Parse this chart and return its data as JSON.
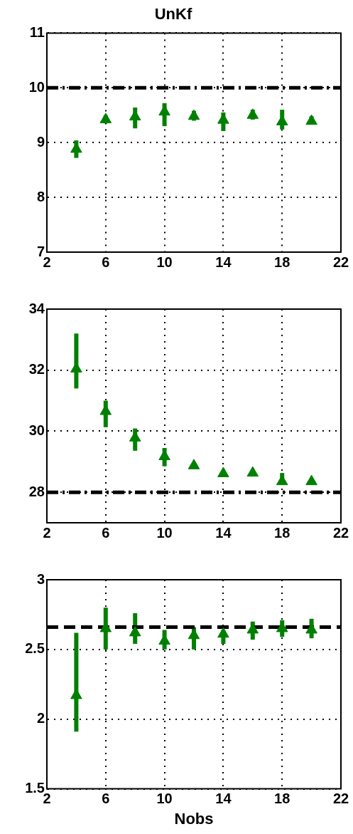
{
  "chart_data": [
    {
      "type": "scatter",
      "title": "UnKf",
      "x": [
        4,
        6,
        8,
        10,
        12,
        14,
        16,
        18,
        20
      ],
      "color": "#008000",
      "marker": "triangle",
      "values": [
        8.88,
        9.42,
        9.47,
        9.56,
        9.48,
        9.41,
        9.5,
        9.38,
        9.39
      ],
      "errors": [
        [
          8.72,
          9.04
        ],
        [
          9.35,
          9.5
        ],
        [
          9.26,
          9.64
        ],
        [
          9.3,
          9.72
        ],
        [
          9.4,
          9.58
        ],
        [
          9.21,
          9.55
        ],
        [
          9.42,
          9.6
        ],
        [
          9.24,
          9.6
        ],
        [
          9.34,
          9.48
        ]
      ],
      "xlim": [
        2,
        22
      ],
      "xticks": [
        2,
        6,
        10,
        14,
        18,
        22
      ],
      "ylim": [
        7,
        11
      ],
      "yticks": [
        7,
        8,
        9,
        10,
        11
      ],
      "grid": true,
      "ref_lines": [
        {
          "axis": "y",
          "value": 10,
          "color": "#000000",
          "line_style": "dashdot"
        }
      ]
    },
    {
      "type": "scatter",
      "x": [
        4,
        6,
        8,
        10,
        12,
        14,
        16,
        18,
        20
      ],
      "color": "#008000",
      "marker": "triangle",
      "values": [
        32.04,
        30.65,
        29.78,
        29.17,
        28.87,
        28.61,
        28.63,
        28.35,
        28.35
      ],
      "errors": [
        [
          31.4,
          33.2
        ],
        [
          30.13,
          31.0
        ],
        [
          29.36,
          30.09
        ],
        [
          28.85,
          29.45
        ],
        [
          28.8,
          28.95
        ],
        [
          28.55,
          28.7
        ],
        [
          28.55,
          28.7
        ],
        [
          28.25,
          28.63
        ],
        [
          28.28,
          28.42
        ]
      ],
      "xlim": [
        2,
        22
      ],
      "xticks": [
        2,
        6,
        10,
        14,
        18,
        22
      ],
      "ylim": [
        27,
        34
      ],
      "yticks": [
        28,
        30,
        32,
        34
      ],
      "grid": true,
      "ref_lines": [
        {
          "axis": "y",
          "value": 28,
          "color": "#000000",
          "line_style": "dashdot"
        }
      ]
    },
    {
      "type": "scatter",
      "xlabel": "Nobs",
      "x": [
        4,
        6,
        8,
        10,
        12,
        14,
        16,
        18,
        20
      ],
      "color": "#008000",
      "marker": "triangle",
      "values": [
        2.17,
        2.65,
        2.62,
        2.56,
        2.6,
        2.61,
        2.64,
        2.65,
        2.64
      ],
      "errors": [
        [
          1.91,
          2.62
        ],
        [
          2.5,
          2.8
        ],
        [
          2.54,
          2.76
        ],
        [
          2.5,
          2.64
        ],
        [
          2.5,
          2.66
        ],
        [
          2.54,
          2.64
        ],
        [
          2.57,
          2.7
        ],
        [
          2.59,
          2.71
        ],
        [
          2.58,
          2.72
        ]
      ],
      "xlim": [
        2,
        22
      ],
      "xticks": [
        2,
        6,
        10,
        14,
        18,
        22
      ],
      "ylim": [
        1.5,
        3
      ],
      "yticks": [
        1.5,
        2,
        2.5,
        3
      ],
      "grid": true,
      "ref_lines": [
        {
          "axis": "y",
          "value": 2.66,
          "color": "#000000",
          "line_style": "dashed"
        }
      ]
    }
  ]
}
